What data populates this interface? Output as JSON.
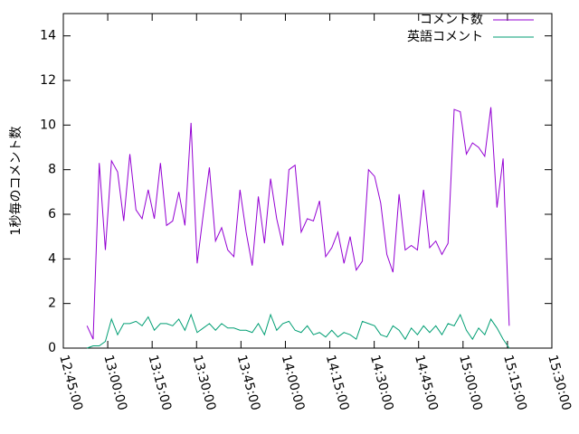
{
  "chart_data": {
    "type": "line",
    "ylabel": "1秒毎のコメント数",
    "xlim": [
      45900,
      55800
    ],
    "xticks": [
      {
        "value": 45900,
        "label": "12:45:00"
      },
      {
        "value": 46800,
        "label": "13:00:00"
      },
      {
        "value": 47700,
        "label": "13:15:00"
      },
      {
        "value": 48600,
        "label": "13:30:00"
      },
      {
        "value": 49500,
        "label": "13:45:00"
      },
      {
        "value": 50400,
        "label": "14:00:00"
      },
      {
        "value": 51300,
        "label": "14:15:00"
      },
      {
        "value": 52200,
        "label": "14:30:00"
      },
      {
        "value": 53100,
        "label": "14:45:00"
      },
      {
        "value": 54000,
        "label": "15:00:00"
      },
      {
        "value": 54900,
        "label": "15:15:00"
      },
      {
        "value": 55800,
        "label": "15:30:00"
      }
    ],
    "ylim": [
      0,
      15
    ],
    "yticks": [
      0,
      2,
      4,
      6,
      8,
      10,
      12,
      14
    ],
    "legend": "top-right",
    "x_start": 46380,
    "x_step": 124,
    "series": [
      {
        "name": "コメント数",
        "color": "#9400d3",
        "values": [
          1.0,
          0.4,
          8.3,
          4.4,
          8.4,
          7.9,
          5.7,
          8.7,
          6.2,
          5.8,
          7.1,
          5.8,
          8.3,
          5.5,
          5.7,
          7.0,
          5.5,
          10.1,
          3.8,
          6.0,
          8.1,
          4.8,
          5.4,
          4.4,
          4.1,
          7.1,
          5.2,
          3.7,
          6.8,
          4.7,
          7.6,
          5.8,
          4.6,
          8.0,
          8.2,
          5.2,
          5.8,
          5.7,
          6.6,
          4.1,
          4.5,
          5.2,
          3.8,
          5.0,
          3.5,
          3.9,
          8.0,
          7.7,
          6.5,
          4.2,
          3.4,
          6.9,
          4.4,
          4.6,
          4.4,
          7.1,
          4.5,
          4.8,
          4.2,
          4.7,
          10.7,
          10.6,
          8.7,
          9.2,
          9.0,
          8.6,
          10.8,
          6.3,
          8.5,
          1.0
        ]
      },
      {
        "name": "英語コメント",
        "color": "#009e73",
        "values": [
          0.0,
          0.1,
          0.1,
          0.3,
          1.3,
          0.6,
          1.1,
          1.1,
          1.2,
          1.0,
          1.4,
          0.8,
          1.1,
          1.1,
          1.0,
          1.3,
          0.8,
          1.5,
          0.7,
          0.9,
          1.1,
          0.8,
          1.1,
          0.9,
          0.9,
          0.8,
          0.8,
          0.7,
          1.1,
          0.6,
          1.5,
          0.8,
          1.1,
          1.2,
          0.8,
          0.7,
          1.0,
          0.6,
          0.7,
          0.5,
          0.8,
          0.5,
          0.7,
          0.6,
          0.4,
          1.2,
          1.1,
          1.0,
          0.6,
          0.5,
          1.0,
          0.8,
          0.4,
          0.9,
          0.6,
          1.0,
          0.7,
          1.0,
          0.6,
          1.1,
          1.0,
          1.5,
          0.8,
          0.4,
          0.9,
          0.6,
          1.3,
          0.9,
          0.4,
          0.0
        ]
      }
    ]
  }
}
